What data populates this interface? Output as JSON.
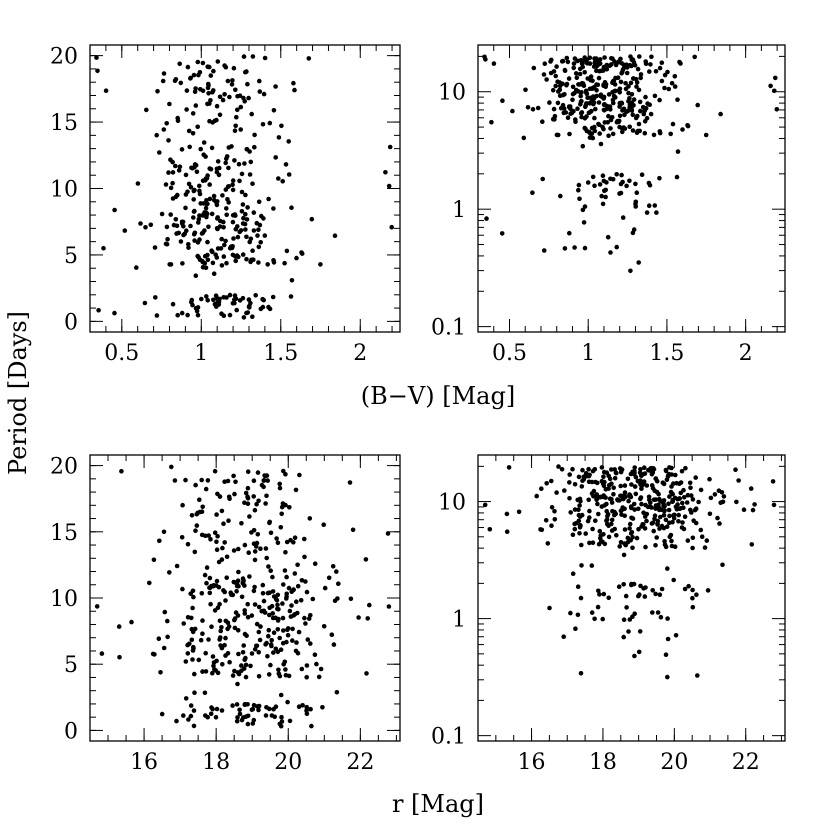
{
  "chart_data": {
    "type": "scatter",
    "ylabel": "Period [Days]",
    "shared_xlabels": [
      "(B−V) [Mag]",
      "r [Mag]"
    ],
    "panels": [
      {
        "id": "bv-linear",
        "xlabel": "(B−V) [Mag]",
        "ylabel": "Period [Days]",
        "yscale": "linear",
        "xlim": [
          0.3,
          2.25
        ],
        "ylim": [
          -0.8,
          20.8
        ],
        "xticks": [
          0.5,
          1,
          1.5,
          2
        ],
        "xtick_labels": [
          "0.5",
          "1",
          "1.5",
          "2"
        ],
        "xminor_step": 0.1,
        "yticks": [
          0,
          5,
          10,
          15,
          20
        ],
        "ytick_labels": [
          "0",
          "5",
          "10",
          "15",
          "20"
        ],
        "yminor_step": 1,
        "gen": {
          "seed": 11,
          "n": 420,
          "xc": 1.08,
          "xs": 0.2,
          "xmin": 0.33,
          "xmax": 2.2,
          "ymin": 0.1,
          "ymax": 20
        }
      },
      {
        "id": "bv-log",
        "xlabel": "(B−V) [Mag]",
        "ylabel": "Period [Days]",
        "yscale": "log",
        "xlim": [
          0.3,
          2.25
        ],
        "ylim": [
          0.09,
          25
        ],
        "xticks": [
          0.5,
          1,
          1.5,
          2
        ],
        "xtick_labels": [
          "0.5",
          "1",
          "1.5",
          "2"
        ],
        "xminor_step": 0.1,
        "yticks": [
          0.1,
          1,
          10
        ],
        "ytick_labels": [
          "0.1",
          "1",
          "10"
        ],
        "gen": {
          "seed": 11,
          "n": 420,
          "xc": 1.08,
          "xs": 0.2,
          "xmin": 0.33,
          "xmax": 2.2,
          "ymin": 0.1,
          "ymax": 20
        }
      },
      {
        "id": "r-linear",
        "xlabel": "r [Mag]",
        "ylabel": "Period [Days]",
        "yscale": "linear",
        "xlim": [
          14.5,
          23.1
        ],
        "ylim": [
          -0.8,
          20.8
        ],
        "xticks": [
          16,
          18,
          20,
          22
        ],
        "xtick_labels": [
          "16",
          "18",
          "20",
          "22"
        ],
        "xminor_step": 0.5,
        "yticks": [
          0,
          5,
          10,
          15,
          20
        ],
        "ytick_labels": [
          "0",
          "5",
          "10",
          "15",
          "20"
        ],
        "yminor_step": 1,
        "gen": {
          "seed": 29,
          "n": 460,
          "xc": 18.9,
          "xs": 1.15,
          "xmin": 14.6,
          "xmax": 22.9,
          "ymin": 0.1,
          "ymax": 20
        }
      },
      {
        "id": "r-log",
        "xlabel": "r [Mag]",
        "ylabel": "Period [Days]",
        "yscale": "log",
        "xlim": [
          14.5,
          23.1
        ],
        "ylim": [
          0.09,
          25
        ],
        "xticks": [
          16,
          18,
          20,
          22
        ],
        "xtick_labels": [
          "16",
          "18",
          "20",
          "22"
        ],
        "xminor_step": 0.5,
        "yticks": [
          0.1,
          1,
          10
        ],
        "ytick_labels": [
          "0.1",
          "1",
          "10"
        ],
        "gen": {
          "seed": 29,
          "n": 460,
          "xc": 18.9,
          "xs": 1.15,
          "xmin": 14.6,
          "xmax": 22.9,
          "ymin": 0.1,
          "ymax": 20
        }
      }
    ]
  }
}
